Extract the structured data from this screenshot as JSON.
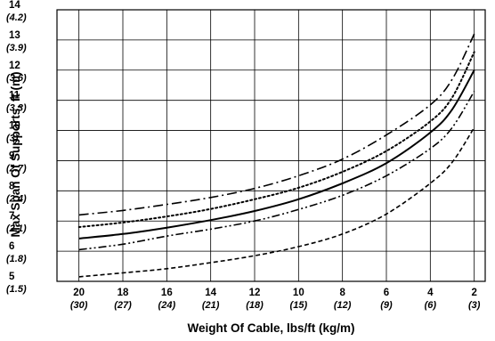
{
  "chart_data": {
    "type": "line",
    "title": "",
    "xlabel": "Weight Of Cable, lbs/ft (kg/m)",
    "ylabel": "Max Span Of Supports, ft (m)",
    "x_reversed": true,
    "xlim": [
      1.5,
      21
    ],
    "ylim": [
      5,
      14
    ],
    "grid": true,
    "legend": "none",
    "x_ticks": [
      {
        "value": 20,
        "label": "20",
        "sub": "(30)"
      },
      {
        "value": 18,
        "label": "18",
        "sub": "(27)"
      },
      {
        "value": 16,
        "label": "16",
        "sub": "(24)"
      },
      {
        "value": 14,
        "label": "14",
        "sub": "(21)"
      },
      {
        "value": 12,
        "label": "12",
        "sub": "(18)"
      },
      {
        "value": 10,
        "label": "10",
        "sub": "(15)"
      },
      {
        "value": 8,
        "label": "8",
        "sub": "(12)"
      },
      {
        "value": 6,
        "label": "6",
        "sub": "(9)"
      },
      {
        "value": 4,
        "label": "4",
        "sub": "(6)"
      },
      {
        "value": 2,
        "label": "2",
        "sub": "(3)"
      }
    ],
    "y_ticks": [
      {
        "value": 5,
        "label": "5",
        "sub": "(1.5)"
      },
      {
        "value": 6,
        "label": "6",
        "sub": "(1.8)"
      },
      {
        "value": 7,
        "label": "7",
        "sub": "(2.1)"
      },
      {
        "value": 8,
        "label": "8",
        "sub": "(2.4)"
      },
      {
        "value": 9,
        "label": "9",
        "sub": "(2.7)"
      },
      {
        "value": 10,
        "label": "10",
        "sub": "(3)"
      },
      {
        "value": 11,
        "label": "11",
        "sub": "(3.3)"
      },
      {
        "value": 12,
        "label": "12",
        "sub": "(3.6)"
      },
      {
        "value": 13,
        "label": "13",
        "sub": "(3.9)"
      },
      {
        "value": 14,
        "label": "14",
        "sub": "(4.2)"
      }
    ],
    "series": [
      {
        "style": "dash-dot",
        "x": [
          20,
          18,
          16,
          14,
          12,
          10,
          8,
          6,
          4,
          3,
          2
        ],
        "y": [
          7.2,
          7.35,
          7.55,
          7.78,
          8.08,
          8.5,
          9.05,
          9.85,
          10.85,
          11.7,
          13.2
        ]
      },
      {
        "style": "dotted",
        "x": [
          20,
          18,
          16,
          14,
          12,
          10,
          8,
          6,
          4,
          3,
          2
        ],
        "y": [
          6.8,
          6.95,
          7.15,
          7.4,
          7.72,
          8.1,
          8.63,
          9.32,
          10.3,
          11.1,
          12.6
        ]
      },
      {
        "style": "solid",
        "x": [
          20,
          18,
          16,
          14,
          12,
          10,
          8,
          6,
          4,
          3,
          2
        ],
        "y": [
          6.42,
          6.57,
          6.78,
          7.03,
          7.33,
          7.72,
          8.25,
          8.92,
          9.93,
          10.7,
          12.0
        ]
      },
      {
        "style": "dash-dot-dot",
        "x": [
          20,
          18,
          16,
          14,
          12,
          10,
          8,
          6,
          4,
          3,
          2
        ],
        "y": [
          6.05,
          6.23,
          6.5,
          6.73,
          7.0,
          7.38,
          7.85,
          8.5,
          9.4,
          10.1,
          11.3
        ]
      },
      {
        "style": "dashed",
        "x": [
          20,
          18,
          16,
          14,
          12,
          10,
          8,
          6,
          4,
          3,
          2
        ],
        "y": [
          5.15,
          5.28,
          5.42,
          5.62,
          5.85,
          6.15,
          6.57,
          7.23,
          8.25,
          8.95,
          10.1
        ]
      }
    ]
  }
}
